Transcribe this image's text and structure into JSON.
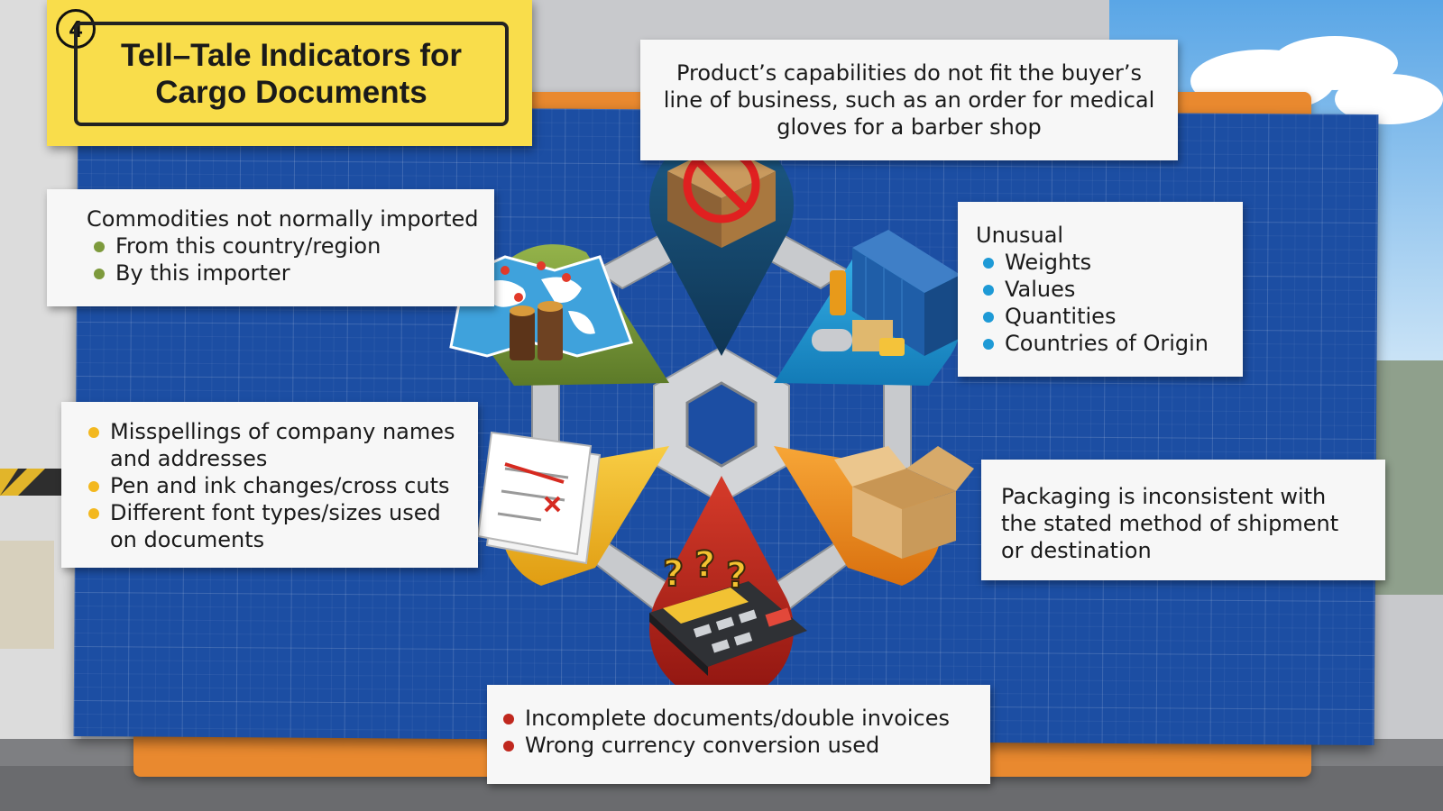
{
  "title": {
    "number": "4",
    "text": "Tell–Tale Indicators for Cargo Documents"
  },
  "colors": {
    "board": "#1c4ea3",
    "frame": "#e9892f",
    "title_bg": "#f9dd4b",
    "navy": "#16466a",
    "blue": "#1e9ad6",
    "orange": "#f08a1a",
    "red": "#b8231a",
    "yellow": "#f3b81f",
    "green": "#7d9a3c"
  },
  "notes": {
    "top": {
      "text": "Product’s capabilities do not fit the buyer’s line of business, such as an order for medical gloves for a barber shop"
    },
    "upper_left": {
      "heading": "Commodities not normally imported",
      "bullets": [
        "From this country/region",
        "By this importer"
      ],
      "bullet_color": "#7d9a3c"
    },
    "upper_right": {
      "heading": "Unusual",
      "bullets": [
        "Weights",
        "Values",
        "Quantities",
        "Countries of Origin"
      ],
      "bullet_color": "#1e9ad6"
    },
    "lower_left": {
      "bullets": [
        "Misspellings of company names and addresses",
        "Pen and ink changes/cross cuts",
        "Different font types/sizes used on documents"
      ],
      "bullet_color": "#f3b81f"
    },
    "lower_right": {
      "text": "Packaging is inconsistent with the stated method of shipment or destination"
    },
    "bottom": {
      "bullets": [
        "Incomplete documents/double invoices",
        "Wrong currency conversion used"
      ],
      "bullet_color": "#c0281e"
    }
  },
  "icons": {
    "top": "prohibited-cargo-crate-icon",
    "upper_left": "world-map-goods-icon",
    "upper_right": "shipping-container-icon",
    "lower_left": "crossed-out-document-icon",
    "lower_right": "open-cardboard-box-icon",
    "bottom": "calculator-question-marks-icon"
  }
}
